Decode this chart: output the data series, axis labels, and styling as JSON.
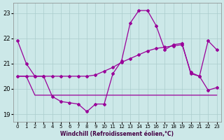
{
  "xlabel": "Windchill (Refroidissement éolien,°C)",
  "bg_color": "#cce8e8",
  "grid_color": "#aacccc",
  "line_color": "#990099",
  "xlim": [
    -0.5,
    23.5
  ],
  "ylim": [
    18.7,
    23.4
  ],
  "xticks": [
    0,
    1,
    2,
    3,
    4,
    5,
    6,
    7,
    8,
    9,
    10,
    11,
    12,
    13,
    14,
    15,
    16,
    17,
    18,
    19,
    20,
    21,
    22,
    23
  ],
  "yticks": [
    19,
    20,
    21,
    22,
    23
  ],
  "line1_x": [
    0,
    1,
    2,
    3,
    4,
    5,
    6,
    7,
    8,
    9,
    10,
    11,
    12,
    13,
    14,
    15,
    16,
    17,
    18,
    19,
    20,
    21,
    22,
    23
  ],
  "line1_y": [
    21.9,
    21.0,
    20.5,
    20.5,
    19.7,
    19.5,
    19.45,
    19.4,
    19.1,
    19.4,
    19.4,
    20.6,
    21.1,
    22.6,
    23.1,
    23.1,
    22.5,
    21.55,
    21.75,
    21.8,
    20.6,
    20.5,
    19.95,
    20.05
  ],
  "line2_x": [
    0,
    1,
    2,
    3,
    4,
    5,
    6,
    7,
    8,
    9,
    10,
    11,
    12,
    13,
    14,
    15,
    16,
    17,
    18,
    19,
    20,
    21,
    22,
    23
  ],
  "line2_y": [
    20.5,
    20.5,
    20.5,
    20.5,
    20.5,
    20.5,
    20.5,
    20.5,
    20.5,
    20.55,
    20.7,
    20.85,
    21.05,
    21.2,
    21.35,
    21.5,
    21.6,
    21.65,
    21.7,
    21.75,
    20.65,
    20.5,
    21.9,
    21.55
  ],
  "line3_x": [
    0,
    1,
    2,
    3,
    4,
    5,
    6,
    7,
    8,
    9,
    10,
    11,
    12,
    13,
    14,
    15,
    16,
    17,
    18,
    19,
    20,
    21,
    22,
    23
  ],
  "line3_y": [
    20.5,
    20.5,
    19.75,
    19.75,
    19.75,
    19.75,
    19.75,
    19.75,
    19.75,
    19.75,
    19.75,
    19.75,
    19.75,
    19.75,
    19.75,
    19.75,
    19.75,
    19.75,
    19.75,
    19.75,
    19.75,
    19.75,
    19.75,
    19.75
  ]
}
